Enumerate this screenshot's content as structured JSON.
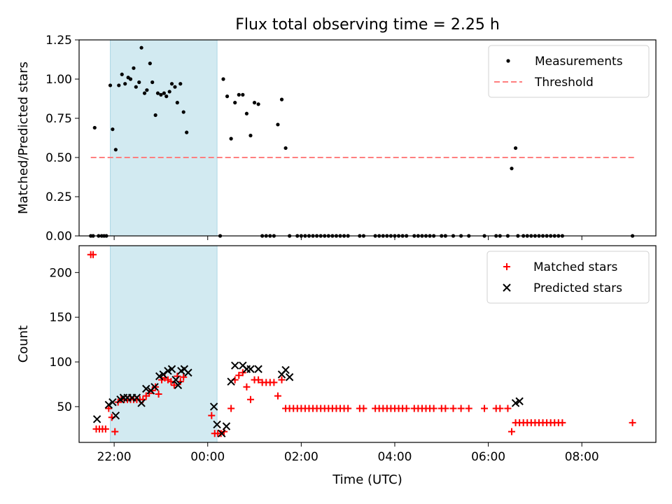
{
  "figure": {
    "title": "Flux total observing time = 2.25 h",
    "xlabel": "Time (UTC)",
    "xticks": [
      "22:00",
      "00:00",
      "02:00",
      "04:00",
      "06:00",
      "08:00"
    ]
  },
  "colors": {
    "measurement": "#000000",
    "threshold": "#ff7f7f",
    "matched": "#ff0000",
    "predicted": "#000000",
    "span": "#add8e6"
  },
  "chart_data": [
    {
      "type": "scatter",
      "ylabel": "Matched/Predicted stars",
      "xlim": [
        "21:15",
        "09:35"
      ],
      "ylim": [
        0,
        1.25
      ],
      "yticks": [
        "0.00",
        "0.25",
        "0.50",
        "0.75",
        "1.00",
        "1.25"
      ],
      "span": [
        "21:55",
        "00:12"
      ],
      "legend_position": "top-right",
      "grid": false,
      "threshold": {
        "name": "Threshold",
        "y": 0.5,
        "x_range": [
          "21:30",
          "09:10"
        ]
      },
      "series": [
        {
          "name": "Measurements",
          "points": [
            [
              "21:30",
              0
            ],
            [
              "21:33",
              0
            ],
            [
              "21:35",
              0.69
            ],
            [
              "21:40",
              0
            ],
            [
              "21:44",
              0
            ],
            [
              "21:47",
              0
            ],
            [
              "21:50",
              0
            ],
            [
              "21:55",
              0.96
            ],
            [
              "21:58",
              0.68
            ],
            [
              "22:02",
              0.55
            ],
            [
              "22:06",
              0.96
            ],
            [
              "22:10",
              1.03
            ],
            [
              "22:14",
              0.97
            ],
            [
              "22:18",
              1.01
            ],
            [
              "22:21",
              1.0
            ],
            [
              "22:25",
              1.07
            ],
            [
              "22:28",
              0.95
            ],
            [
              "22:32",
              0.98
            ],
            [
              "22:35",
              1.2
            ],
            [
              "22:39",
              0.91
            ],
            [
              "22:42",
              0.93
            ],
            [
              "22:46",
              1.1
            ],
            [
              "22:49",
              0.98
            ],
            [
              "22:53",
              0.77
            ],
            [
              "22:56",
              0.91
            ],
            [
              "23:00",
              0.9
            ],
            [
              "23:04",
              0.91
            ],
            [
              "23:07",
              0.89
            ],
            [
              "23:11",
              0.92
            ],
            [
              "23:14",
              0.97
            ],
            [
              "23:18",
              0.95
            ],
            [
              "23:21",
              0.85
            ],
            [
              "23:25",
              0.97
            ],
            [
              "23:29",
              0.79
            ],
            [
              "23:33",
              0.66
            ],
            [
              "00:16",
              0
            ],
            [
              "00:20",
              1.0
            ],
            [
              "00:25",
              0.89
            ],
            [
              "00:30",
              0.62
            ],
            [
              "00:35",
              0.85
            ],
            [
              "00:40",
              0.9
            ],
            [
              "00:45",
              0.9
            ],
            [
              "00:50",
              0.78
            ],
            [
              "00:55",
              0.64
            ],
            [
              "01:00",
              0.85
            ],
            [
              "01:05",
              0.84
            ],
            [
              "01:10",
              0
            ],
            [
              "01:15",
              0
            ],
            [
              "01:20",
              0
            ],
            [
              "01:25",
              0
            ],
            [
              "01:30",
              0.71
            ],
            [
              "01:35",
              0.87
            ],
            [
              "01:40",
              0.56
            ],
            [
              "01:45",
              0
            ],
            [
              "01:55",
              0
            ],
            [
              "02:00",
              0
            ],
            [
              "02:05",
              0
            ],
            [
              "02:10",
              0
            ],
            [
              "02:15",
              0
            ],
            [
              "02:20",
              0
            ],
            [
              "02:25",
              0
            ],
            [
              "02:30",
              0
            ],
            [
              "02:35",
              0
            ],
            [
              "02:40",
              0
            ],
            [
              "02:45",
              0
            ],
            [
              "02:50",
              0
            ],
            [
              "02:55",
              0
            ],
            [
              "03:00",
              0
            ],
            [
              "03:15",
              0
            ],
            [
              "03:20",
              0
            ],
            [
              "03:35",
              0
            ],
            [
              "03:40",
              0
            ],
            [
              "03:45",
              0
            ],
            [
              "03:50",
              0
            ],
            [
              "03:55",
              0
            ],
            [
              "04:00",
              0
            ],
            [
              "04:05",
              0
            ],
            [
              "04:10",
              0
            ],
            [
              "04:15",
              0
            ],
            [
              "04:25",
              0
            ],
            [
              "04:30",
              0
            ],
            [
              "04:35",
              0
            ],
            [
              "04:40",
              0
            ],
            [
              "04:45",
              0
            ],
            [
              "04:50",
              0
            ],
            [
              "05:00",
              0
            ],
            [
              "05:05",
              0
            ],
            [
              "05:15",
              0
            ],
            [
              "05:25",
              0
            ],
            [
              "05:35",
              0
            ],
            [
              "05:55",
              0
            ],
            [
              "06:10",
              0
            ],
            [
              "06:15",
              0
            ],
            [
              "06:25",
              0
            ],
            [
              "06:30",
              0.43
            ],
            [
              "06:35",
              0.56
            ],
            [
              "06:38",
              0
            ],
            [
              "06:45",
              0
            ],
            [
              "06:50",
              0
            ],
            [
              "06:55",
              0
            ],
            [
              "07:00",
              0
            ],
            [
              "07:05",
              0
            ],
            [
              "07:10",
              0
            ],
            [
              "07:15",
              0
            ],
            [
              "07:20",
              0
            ],
            [
              "07:25",
              0
            ],
            [
              "07:30",
              0
            ],
            [
              "07:35",
              0
            ],
            [
              "09:05",
              0
            ]
          ]
        }
      ]
    },
    {
      "type": "scatter",
      "ylabel": "Count",
      "xlim": [
        "21:15",
        "09:35"
      ],
      "ylim": [
        10,
        230
      ],
      "yticks": [
        "50",
        "100",
        "150",
        "200"
      ],
      "span": [
        "21:55",
        "00:12"
      ],
      "legend_position": "top-right",
      "grid": false,
      "series": [
        {
          "name": "Matched stars",
          "marker": "plus",
          "points": [
            [
              "21:30",
              220
            ],
            [
              "21:33",
              220
            ],
            [
              "21:37",
              25
            ],
            [
              "21:41",
              25
            ],
            [
              "21:45",
              25
            ],
            [
              "21:49",
              25
            ],
            [
              "21:53",
              48
            ],
            [
              "21:57",
              38
            ],
            [
              "22:01",
              22
            ],
            [
              "22:05",
              55
            ],
            [
              "22:09",
              58
            ],
            [
              "22:13",
              58
            ],
            [
              "22:17",
              58
            ],
            [
              "22:21",
              58
            ],
            [
              "22:25",
              58
            ],
            [
              "22:29",
              58
            ],
            [
              "22:33",
              58
            ],
            [
              "22:37",
              58
            ],
            [
              "22:41",
              62
            ],
            [
              "22:45",
              65
            ],
            [
              "22:49",
              68
            ],
            [
              "22:53",
              72
            ],
            [
              "22:57",
              64
            ],
            [
              "23:01",
              80
            ],
            [
              "23:05",
              82
            ],
            [
              "23:09",
              80
            ],
            [
              "23:13",
              78
            ],
            [
              "23:17",
              74
            ],
            [
              "23:21",
              84
            ],
            [
              "23:25",
              78
            ],
            [
              "23:29",
              83
            ],
            [
              "00:05",
              40
            ],
            [
              "00:09",
              20
            ],
            [
              "00:13",
              20
            ],
            [
              "00:17",
              20
            ],
            [
              "00:21",
              22
            ],
            [
              "00:30",
              48
            ],
            [
              "00:35",
              80
            ],
            [
              "00:40",
              85
            ],
            [
              "00:45",
              88
            ],
            [
              "00:50",
              72
            ],
            [
              "00:55",
              58
            ],
            [
              "01:00",
              80
            ],
            [
              "01:05",
              80
            ],
            [
              "01:10",
              77
            ],
            [
              "01:15",
              77
            ],
            [
              "01:20",
              77
            ],
            [
              "01:25",
              77
            ],
            [
              "01:30",
              62
            ],
            [
              "01:35",
              80
            ],
            [
              "01:40",
              48
            ],
            [
              "01:45",
              48
            ],
            [
              "01:50",
              48
            ],
            [
              "01:55",
              48
            ],
            [
              "02:00",
              48
            ],
            [
              "02:05",
              48
            ],
            [
              "02:10",
              48
            ],
            [
              "02:15",
              48
            ],
            [
              "02:20",
              48
            ],
            [
              "02:25",
              48
            ],
            [
              "02:30",
              48
            ],
            [
              "02:35",
              48
            ],
            [
              "02:40",
              48
            ],
            [
              "02:45",
              48
            ],
            [
              "02:50",
              48
            ],
            [
              "02:55",
              48
            ],
            [
              "03:00",
              48
            ],
            [
              "03:15",
              48
            ],
            [
              "03:20",
              48
            ],
            [
              "03:35",
              48
            ],
            [
              "03:40",
              48
            ],
            [
              "03:45",
              48
            ],
            [
              "03:50",
              48
            ],
            [
              "03:55",
              48
            ],
            [
              "04:00",
              48
            ],
            [
              "04:05",
              48
            ],
            [
              "04:10",
              48
            ],
            [
              "04:15",
              48
            ],
            [
              "04:25",
              48
            ],
            [
              "04:30",
              48
            ],
            [
              "04:35",
              48
            ],
            [
              "04:40",
              48
            ],
            [
              "04:45",
              48
            ],
            [
              "04:50",
              48
            ],
            [
              "05:00",
              48
            ],
            [
              "05:05",
              48
            ],
            [
              "05:15",
              48
            ],
            [
              "05:25",
              48
            ],
            [
              "05:35",
              48
            ],
            [
              "05:55",
              48
            ],
            [
              "06:10",
              48
            ],
            [
              "06:15",
              48
            ],
            [
              "06:25",
              48
            ],
            [
              "06:30",
              22
            ],
            [
              "06:35",
              32
            ],
            [
              "06:40",
              32
            ],
            [
              "06:45",
              32
            ],
            [
              "06:50",
              32
            ],
            [
              "06:55",
              32
            ],
            [
              "07:00",
              32
            ],
            [
              "07:05",
              32
            ],
            [
              "07:10",
              32
            ],
            [
              "07:15",
              32
            ],
            [
              "07:20",
              32
            ],
            [
              "07:25",
              32
            ],
            [
              "07:30",
              32
            ],
            [
              "07:35",
              32
            ],
            [
              "09:05",
              32
            ]
          ]
        },
        {
          "name": "Predicted stars",
          "marker": "x",
          "points": [
            [
              "21:38",
              36
            ],
            [
              "21:53",
              52
            ],
            [
              "21:58",
              55
            ],
            [
              "22:02",
              40
            ],
            [
              "22:08",
              58
            ],
            [
              "22:12",
              60
            ],
            [
              "22:17",
              60
            ],
            [
              "22:23",
              60
            ],
            [
              "22:29",
              60
            ],
            [
              "22:35",
              54
            ],
            [
              "22:41",
              70
            ],
            [
              "22:47",
              68
            ],
            [
              "22:52",
              72
            ],
            [
              "22:58",
              84
            ],
            [
              "23:03",
              86
            ],
            [
              "23:09",
              90
            ],
            [
              "23:14",
              92
            ],
            [
              "23:19",
              80
            ],
            [
              "23:22",
              74
            ],
            [
              "23:26",
              90
            ],
            [
              "23:30",
              92
            ],
            [
              "23:35",
              88
            ],
            [
              "00:08",
              50
            ],
            [
              "00:12",
              30
            ],
            [
              "00:18",
              20
            ],
            [
              "00:24",
              28
            ],
            [
              "00:30",
              78
            ],
            [
              "00:35",
              96
            ],
            [
              "00:45",
              96
            ],
            [
              "00:50",
              92
            ],
            [
              "00:55",
              92
            ],
            [
              "01:05",
              92
            ],
            [
              "01:35",
              86
            ],
            [
              "01:40",
              91
            ],
            [
              "01:45",
              83
            ],
            [
              "06:35",
              54
            ],
            [
              "06:40",
              56
            ]
          ]
        }
      ]
    }
  ]
}
